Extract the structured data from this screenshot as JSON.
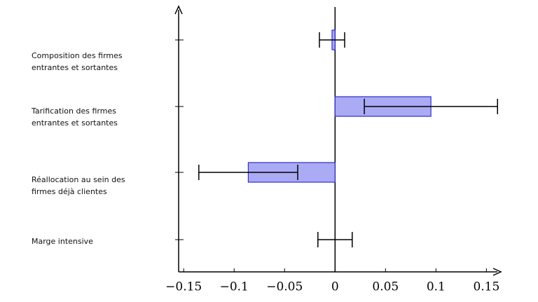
{
  "chart_data": {
    "type": "hbar-error",
    "categories": [
      "Composition des firmes entrantes et sortantes",
      "Tarification des firmes entrantes et sortantes",
      "Réallocation au sein des firmes déjà clientes",
      "Marge intensive"
    ],
    "values": [
      -0.003,
      0.095,
      -0.086,
      0
    ],
    "errors": [
      0.0125,
      0.066,
      0.049,
      0.017
    ],
    "color": "#aaaaf5",
    "xlim": [
      -0.155,
      0.165
    ],
    "xticks": [
      {
        "value": -0.15,
        "label": "−0.15"
      },
      {
        "value": -0.1,
        "label": "−0.1"
      },
      {
        "value": -0.05,
        "label": "−0.05"
      },
      0,
      0.05,
      0.1,
      0.15
    ]
  }
}
